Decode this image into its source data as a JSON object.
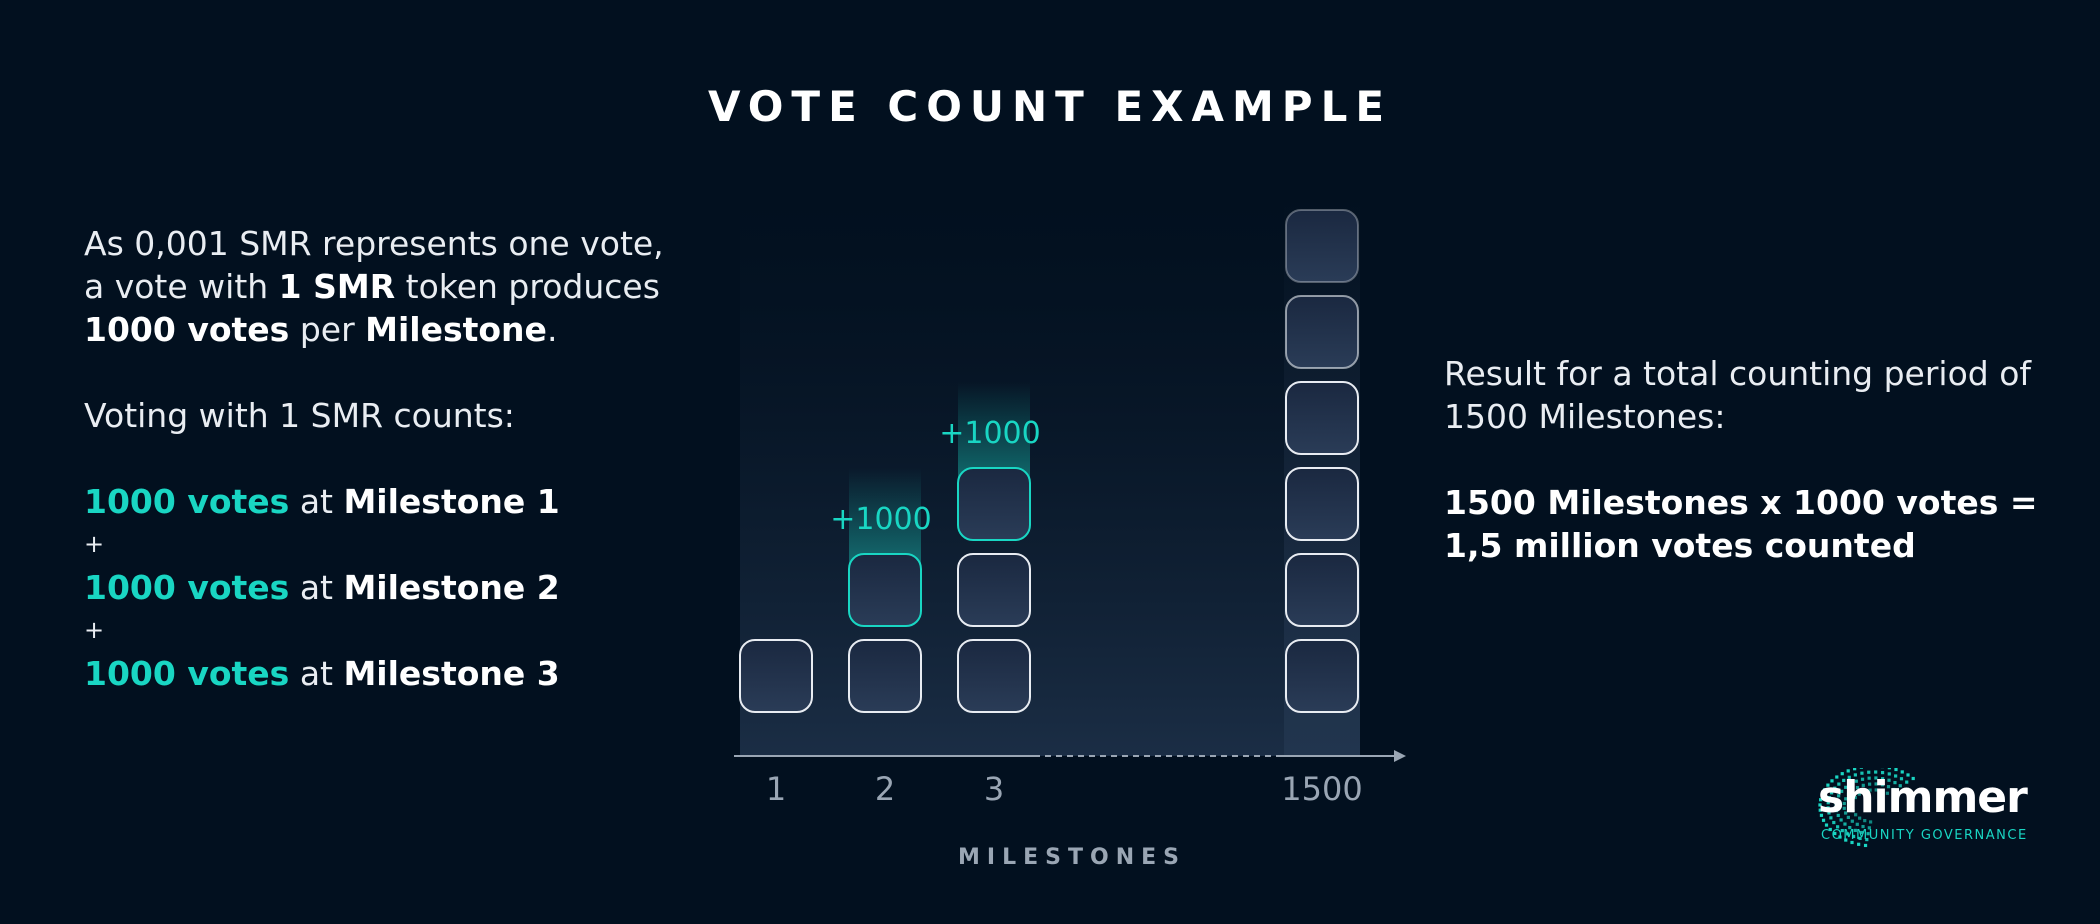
{
  "title": "VOTE COUNT EXAMPLE",
  "left_text": {
    "line1": "As 0,001 SMR represents one vote,",
    "line2_a": "a vote with ",
    "line2_b": "1 SMR",
    "line2_c": " token produces",
    "line3_a": "1000 votes",
    "line3_b": " per ",
    "line3_c": "Milestone",
    "line3_d": ".",
    "counts_intro": "Voting with 1 SMR counts:",
    "rows": [
      {
        "votes": "1000 votes",
        "at": " at ",
        "milestone": "Milestone 1"
      },
      {
        "votes": "1000 votes",
        "at": " at ",
        "milestone": "Milestone 2"
      },
      {
        "votes": "1000 votes",
        "at": " at ",
        "milestone": "Milestone 3"
      }
    ],
    "plus": "+"
  },
  "right_text": {
    "line1": "Result for a total counting period of",
    "line2": "1500 Milestones:",
    "result1": "1500 Milestones x 1000 votes =",
    "result2": "1,5 million votes counted"
  },
  "diagram": {
    "axis_label": "MILESTONES",
    "columns": [
      {
        "label": "1",
        "blocks": 1,
        "highlight": false,
        "increment": ""
      },
      {
        "label": "2",
        "blocks": 2,
        "highlight": true,
        "increment": "+1000"
      },
      {
        "label": "3",
        "blocks": 3,
        "highlight": true,
        "increment": "+1000"
      },
      {
        "label": "1500",
        "blocks": 6,
        "highlight": false,
        "increment": ""
      }
    ],
    "colors": {
      "accent": "#19d6c3",
      "block_stroke": "#e8ecf2",
      "axis": "#9aa6b4"
    }
  },
  "logo": {
    "word": "shimmer",
    "sub": "COMMUNITY GOVERNANCE",
    "icon": "shimmer-logo-icon"
  }
}
